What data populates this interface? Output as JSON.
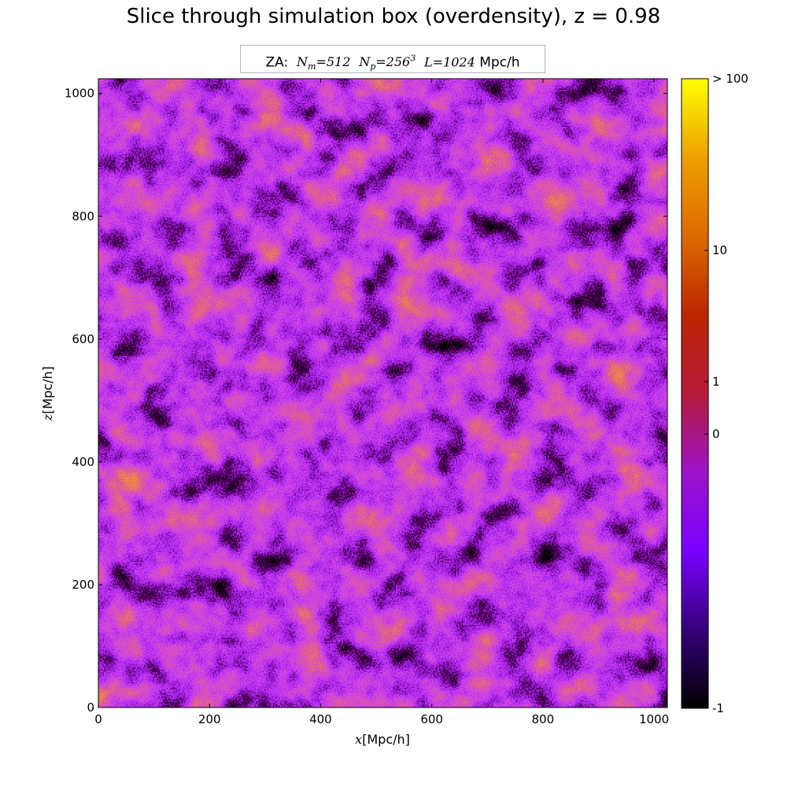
{
  "title": "Slice through simulation box (overdensity), z = 0.98",
  "infobox": {
    "prefix": "ZA:",
    "nm_sym": "N",
    "nm_sub": "m",
    "nm_val": "=512",
    "np_sym": "N",
    "np_sub": "p",
    "np_val": "=256",
    "np_exp": "3",
    "l_sym": "L",
    "l_val": "=1024",
    "unit": "Mpc/h"
  },
  "chart_data": {
    "type": "heatmap",
    "title": "Slice through simulation box (overdensity), z = 0.98",
    "annotation": "ZA: N_m = 512  N_p = 256^3  L = 1024 Mpc/h",
    "xlabel": {
      "var": "x",
      "unit": "[Mpc/h]"
    },
    "ylabel": {
      "var": "z",
      "unit": "[Mpc/h]"
    },
    "xlim": [
      0,
      1024
    ],
    "ylim": [
      0,
      1024
    ],
    "xticks": [
      0,
      200,
      400,
      600,
      800,
      1000
    ],
    "yticks": [
      0,
      200,
      400,
      600,
      800,
      1000
    ],
    "colormap": "gnuplot",
    "colorbar": {
      "range": [
        -1,
        100
      ],
      "scale": "log(1+delta)",
      "ticks": [
        {
          "value": -1,
          "label": "-1"
        },
        {
          "value": 0,
          "label": "0"
        },
        {
          "value": 1,
          "label": "1"
        },
        {
          "value": 10,
          "label": "10"
        },
        {
          "value": 100,
          "label": "> 100"
        }
      ],
      "stops": [
        "#000000",
        "#35007a",
        "#7a00ff",
        "#9d13c9",
        "#b51a3a",
        "#bb2600",
        "#dd6a00",
        "#eea000",
        "#ffff00"
      ]
    },
    "grid": false
  }
}
